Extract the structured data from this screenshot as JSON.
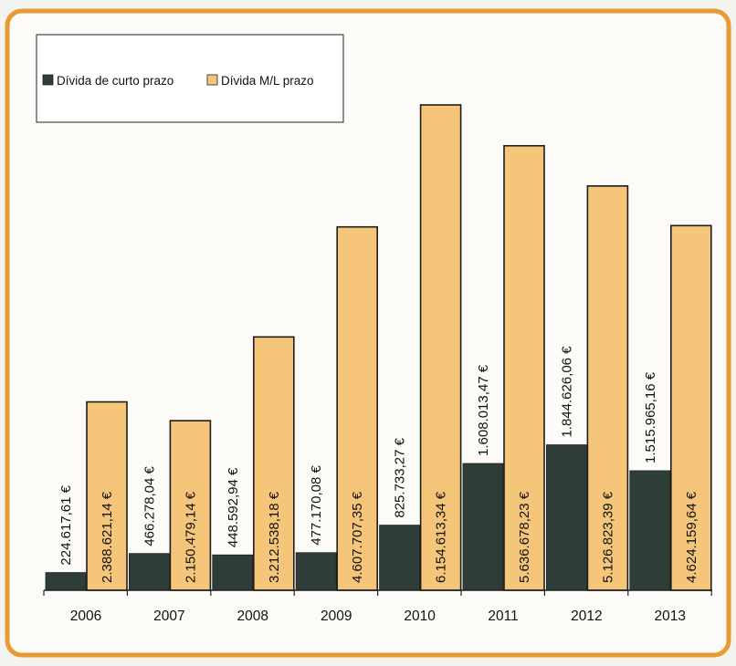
{
  "chart_data": {
    "type": "bar",
    "title": "",
    "xlabel": "",
    "ylabel": "",
    "categories": [
      "2006",
      "2007",
      "2008",
      "2009",
      "2010",
      "2011",
      "2012",
      "2013"
    ],
    "series": [
      {
        "name": "Dívida de curto prazo",
        "color": "#2f3d38",
        "values": [
          224617.61,
          466278.04,
          448592.94,
          477170.08,
          825733.27,
          1608013.47,
          1844626.06,
          1515965.16
        ],
        "labels": [
          "224.617,61 €",
          "466.278,04 €",
          "448.592,94 €",
          "477.170,08 €",
          "825.733,27 €",
          "1.608.013,47 €",
          "1.844.626,06 €",
          "1.515.965,16 €"
        ]
      },
      {
        "name": "Dívida M/L prazo",
        "color": "#f5c57a",
        "values": [
          2388621.14,
          2150479.14,
          3212538.18,
          4607707.35,
          6154613.34,
          5636678.23,
          5126823.39,
          4624159.64
        ],
        "labels": [
          "2.388.621,14 €",
          "2.150.479,14 €",
          "3.212.538,18 €",
          "4.607.707,35 €",
          "6.154.613,34 €",
          "5.636.678,23 €",
          "5.126.823,39 €",
          "4.624.159,64 €"
        ]
      }
    ],
    "ylim": [
      0,
      6154613.34
    ],
    "grid": false,
    "legend": "top-left",
    "frame_color": "#e89a35"
  }
}
